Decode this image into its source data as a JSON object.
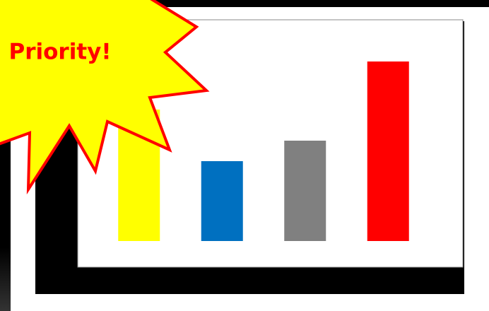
{
  "chart_data": {
    "type": "bar",
    "annotation": "Priority!",
    "categories": [
      null,
      null,
      null,
      null
    ],
    "values": [
      186,
      113,
      142,
      254
    ],
    "colors": [
      "#ffff00",
      "#0070c0",
      "#808080",
      "#ff0000"
    ],
    "ylim": [
      0,
      300
    ]
  }
}
